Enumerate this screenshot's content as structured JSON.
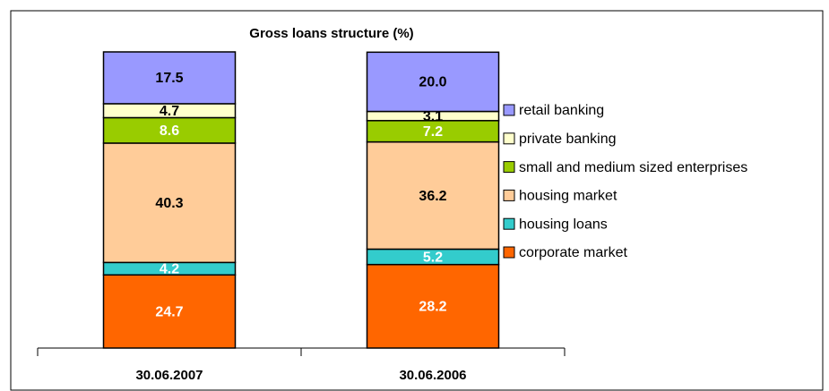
{
  "chart_data": {
    "type": "stacked_bar",
    "title": "Gross loans structure (%)",
    "categories": [
      "30.06.2007",
      "30.06.2006"
    ],
    "ylim": [
      0,
      100
    ],
    "series": [
      {
        "name": "corporate market",
        "color": "#ff6600",
        "label_color": "#ffffff",
        "values": [
          24.7,
          28.2
        ]
      },
      {
        "name": "housing loans",
        "color": "#33cccc",
        "label_color": "#ffffff",
        "values": [
          4.2,
          5.2
        ]
      },
      {
        "name": "housing market",
        "color": "#ffcc99",
        "label_color": "#000000",
        "values": [
          40.3,
          36.2
        ]
      },
      {
        "name": "small and medium sized enterprises",
        "color": "#99cc00",
        "label_color": "#ffffff",
        "values": [
          8.6,
          7.2
        ]
      },
      {
        "name": "private banking",
        "color": "#ffffcc",
        "label_color": "#000000",
        "values": [
          4.7,
          3.1
        ]
      },
      {
        "name": "retail banking",
        "color": "#9999ff",
        "label_color": "#000000",
        "values": [
          17.5,
          20.0
        ],
        "value_labels": [
          "17.5",
          "20.0"
        ]
      }
    ]
  }
}
